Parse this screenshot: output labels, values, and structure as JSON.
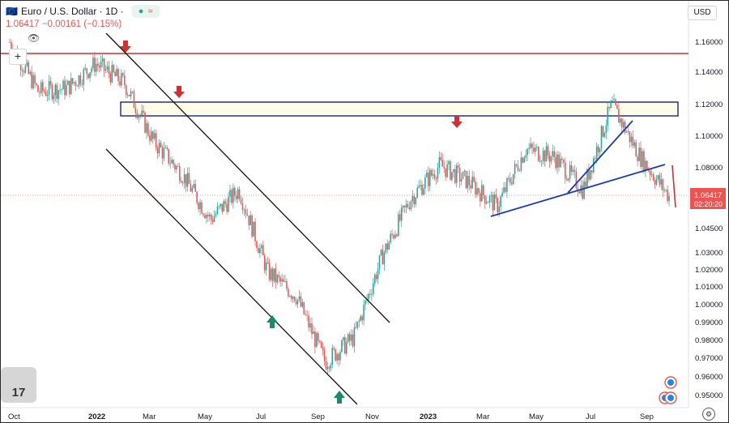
{
  "header": {
    "symbol_icon": "euro-dollar-flag-icon",
    "title": "Euro / U.S. Dollar · 1D ·",
    "quote": "1.06417  −0.00161 (−0.15%)",
    "currency": "USD",
    "compare_plus": "+",
    "eye_icon": "eye-hidden-icon"
  },
  "price_axis": {
    "labels": [
      "1.16000",
      "1.14000",
      "1.12000",
      "1.10000",
      "1.08000",
      "1.06417",
      "1.04500",
      "1.03000",
      "1.02000",
      "1.01000",
      "1.00000",
      "0.99000",
      "0.98000",
      "0.97000",
      "0.96000",
      "0.95000"
    ],
    "current_price": "1.06417",
    "countdown": "02:20:20"
  },
  "time_axis": {
    "labels": [
      "Oct",
      "2022",
      "Mar",
      "May",
      "Jul",
      "Sep",
      "Nov",
      "2023",
      "Mar",
      "May",
      "Jul",
      "Sep"
    ]
  },
  "colors": {
    "up": "#26a69a",
    "down": "#ef5350",
    "resistance": "#d32f2f",
    "zone": "#fffde7",
    "trend": "#1a237e",
    "channel": "#111111"
  },
  "logo": {
    "text": "17"
  },
  "chart_data": {
    "type": "candlestick",
    "title": "Euro / U.S. Dollar · 1D ·",
    "xlabel": "",
    "ylabel": "",
    "horizontal_line": 1.153,
    "resistance_zone": [
      1.112,
      1.121
    ],
    "last_price": 1.06417,
    "series": [
      {
        "x": "2021-10",
        "y": 1.16
      },
      {
        "x": "2021-11",
        "y": 1.13
      },
      {
        "x": "2021-12",
        "y": 1.132
      },
      {
        "x": "2022-01",
        "y": 1.147
      },
      {
        "x": "2022-02",
        "y": 1.135
      },
      {
        "x": "2022-03",
        "y": 1.1
      },
      {
        "x": "2022-04",
        "y": 1.08
      },
      {
        "x": "2022-05",
        "y": 1.052
      },
      {
        "x": "2022-06",
        "y": 1.07
      },
      {
        "x": "2022-07",
        "y": 1.02
      },
      {
        "x": "2022-08",
        "y": 1.005
      },
      {
        "x": "2022-09",
        "y": 0.965
      },
      {
        "x": "2022-10",
        "y": 0.98
      },
      {
        "x": "2022-11",
        "y": 1.03
      },
      {
        "x": "2022-12",
        "y": 1.065
      },
      {
        "x": "2023-01",
        "y": 1.085
      },
      {
        "x": "2023-02",
        "y": 1.075
      },
      {
        "x": "2023-03",
        "y": 1.06
      },
      {
        "x": "2023-04",
        "y": 1.095
      },
      {
        "x": "2023-05",
        "y": 1.09
      },
      {
        "x": "2023-06",
        "y": 1.07
      },
      {
        "x": "2023-07",
        "y": 1.122
      },
      {
        "x": "2023-08",
        "y": 1.09
      },
      {
        "x": "2023-09",
        "y": 1.066
      }
    ]
  }
}
